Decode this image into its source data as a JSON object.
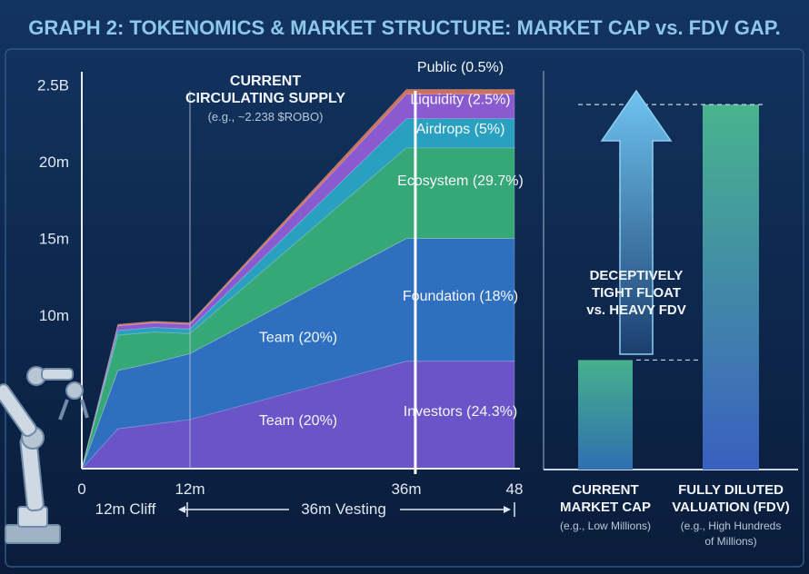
{
  "page": {
    "title": "GRAPH 2: TOKENOMICS & MARKET STRUCTURE: MARKET CAP vs. FDV GAP."
  },
  "colors": {
    "background": "#0b1a33",
    "panel": "#102a4f",
    "title": "#8fc7e8",
    "investors": "#6a54c8",
    "team": "#2e6fc0",
    "foundation": "#2a8ad0",
    "ecosystem": "#36a777",
    "airdrops": "#2aa0c0",
    "liquidity": "#8a5ad0",
    "public": "#d0705a",
    "market_cap_bar": "#3d9a86",
    "fdv_bar": "#3d9a86",
    "arrow": "#4aa3e0"
  },
  "chart_data": [
    {
      "type": "area",
      "title": "",
      "xlabel": "",
      "ylabel": "",
      "x": [
        0,
        4,
        8,
        12,
        36,
        48
      ],
      "x_ticks": [
        "0",
        "12m",
        "36m",
        "48"
      ],
      "x_tick_values": [
        0,
        12,
        36,
        48
      ],
      "y_ticks": [
        "2.5B",
        "20m",
        "15m",
        "10m"
      ],
      "y_tick_values": [
        25,
        20,
        15,
        10
      ],
      "ylim": [
        0,
        25.5
      ],
      "xlim": [
        0,
        48
      ],
      "grid": false,
      "stacked": true,
      "series": [
        {
          "name": "Investors (24.3%)",
          "color_key": "investors",
          "values": [
            0,
            2.6,
            2.9,
            3.2,
            7.0,
            7.0
          ]
        },
        {
          "name": "Team (20%)",
          "color_key": "team",
          "values": [
            0,
            3.8,
            4.0,
            4.3,
            8.0,
            8.0
          ]
        },
        {
          "name": "Foundation (18%)",
          "color_key": "foundation",
          "values": [
            0,
            0,
            0,
            0,
            0,
            0
          ]
        },
        {
          "name": "Ecosystem (29.7%)",
          "color_key": "ecosystem",
          "values": [
            0,
            2.3,
            2.0,
            1.3,
            5.9,
            5.9
          ]
        },
        {
          "name": "Airdrops (5%)",
          "color_key": "airdrops",
          "values": [
            0,
            0.3,
            0.3,
            0.3,
            1.9,
            1.9
          ]
        },
        {
          "name": "Liquidity (2.5%)",
          "color_key": "liquidity",
          "values": [
            0,
            0.3,
            0.3,
            0.3,
            1.6,
            1.6
          ]
        },
        {
          "name": "Public (0.5%)",
          "color_key": "public",
          "values": [
            0,
            0.1,
            0.1,
            0.1,
            0.3,
            0.3
          ]
        }
      ],
      "area_labels": [
        {
          "text": "Team (20%)",
          "x": 24,
          "y": 3.2
        },
        {
          "text": "Team (20%)",
          "x": 24,
          "y": 8.6
        },
        {
          "text": "Investors (24.3%)",
          "x": 42,
          "y": 3.8
        },
        {
          "text": "Foundation (18%)",
          "x": 42,
          "y": 11.3
        },
        {
          "text": "Ecosystem (29.7%)",
          "x": 42,
          "y": 18.8
        },
        {
          "text": "Airdrops (5%)",
          "x": 42,
          "y": 22.2
        },
        {
          "text": "Liquidity (2.5%)",
          "x": 42,
          "y": 24.1
        },
        {
          "text": "Public (0.5%)",
          "x": 42,
          "y": 26.2
        }
      ],
      "annotations": {
        "current_supply_title": [
          "CURRENT",
          "CIRCULATING SUPPLY"
        ],
        "current_supply_note": "(e.g., ~2.238 $ROBO)",
        "cliff_line_x": 12,
        "current_line_x": 37,
        "cliff_label": "12m Cliff",
        "vesting_label": "36m Vesting"
      }
    },
    {
      "type": "bar",
      "title": "",
      "categories": [
        "CURRENT MARKET CAP",
        "FULLY DILUTED VALUATION (FDV)"
      ],
      "category_lines": [
        [
          "CURRENT",
          "MARKET CAP"
        ],
        [
          "FULLY DILUTED",
          "VALUATION (FDV)"
        ]
      ],
      "category_notes": [
        [
          "(e.g., Low Millions)"
        ],
        [
          "(e.g., High Hundreds",
          "of Millions)"
        ]
      ],
      "values": [
        0.3,
        1.0
      ],
      "ylim": [
        0,
        1.05
      ],
      "value_unit": "fraction of FDV",
      "annotation": [
        "DECEPTIVELY",
        "TIGHT FLOAT",
        "vs. HEAVY FDV"
      ]
    }
  ]
}
